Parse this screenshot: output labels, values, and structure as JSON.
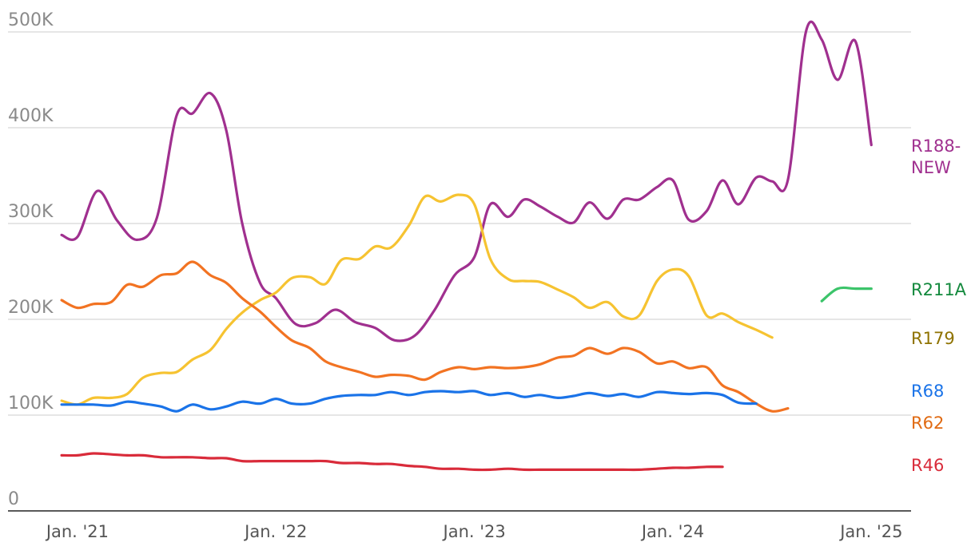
{
  "chart_data": {
    "type": "line",
    "y_ticks": [
      {
        "value": 0,
        "label": "0"
      },
      {
        "value": 100000,
        "label": "100K"
      },
      {
        "value": 200000,
        "label": "200K"
      },
      {
        "value": 300000,
        "label": "300K"
      },
      {
        "value": 400000,
        "label": "400K"
      },
      {
        "value": 500000,
        "label": "500K"
      }
    ],
    "x_ticks": [
      {
        "value": 2021.0,
        "label": "Jan. '21"
      },
      {
        "value": 2022.0,
        "label": "Jan. '22"
      },
      {
        "value": 2023.0,
        "label": "Jan. '23"
      },
      {
        "value": 2024.0,
        "label": "Jan. '24"
      },
      {
        "value": 2025.0,
        "label": "Jan. '25"
      }
    ],
    "xlim": [
      2020.65,
      2025.2
    ],
    "ylim": [
      0,
      500000
    ],
    "grid": true,
    "series": [
      {
        "name": "R188-NEW",
        "label_lines": [
          "R188-",
          "NEW"
        ],
        "color": "#a0308f",
        "label_color": "#a0308f",
        "points": [
          [
            2020.92,
            288000
          ],
          [
            2021.0,
            286000
          ],
          [
            2021.1,
            334000
          ],
          [
            2021.2,
            303000
          ],
          [
            2021.3,
            283000
          ],
          [
            2021.4,
            306000
          ],
          [
            2021.5,
            413000
          ],
          [
            2021.58,
            415000
          ],
          [
            2021.67,
            436000
          ],
          [
            2021.75,
            397000
          ],
          [
            2021.83,
            300000
          ],
          [
            2021.92,
            238000
          ],
          [
            2022.0,
            222000
          ],
          [
            2022.1,
            195000
          ],
          [
            2022.2,
            196000
          ],
          [
            2022.3,
            210000
          ],
          [
            2022.4,
            197000
          ],
          [
            2022.5,
            191000
          ],
          [
            2022.6,
            178000
          ],
          [
            2022.7,
            183000
          ],
          [
            2022.8,
            210000
          ],
          [
            2022.9,
            246000
          ],
          [
            2023.0,
            265000
          ],
          [
            2023.08,
            320000
          ],
          [
            2023.17,
            307000
          ],
          [
            2023.25,
            325000
          ],
          [
            2023.33,
            318000
          ],
          [
            2023.42,
            307000
          ],
          [
            2023.5,
            301000
          ],
          [
            2023.58,
            322000
          ],
          [
            2023.67,
            305000
          ],
          [
            2023.75,
            325000
          ],
          [
            2023.83,
            325000
          ],
          [
            2023.92,
            338000
          ],
          [
            2024.0,
            345000
          ],
          [
            2024.08,
            304000
          ],
          [
            2024.17,
            313000
          ],
          [
            2024.25,
            345000
          ],
          [
            2024.33,
            320000
          ],
          [
            2024.42,
            348000
          ],
          [
            2024.5,
            344000
          ],
          [
            2024.58,
            346000
          ],
          [
            2024.67,
            500000
          ],
          [
            2024.75,
            492000
          ],
          [
            2024.83,
            450000
          ],
          [
            2024.92,
            490000
          ],
          [
            2025.0,
            382000
          ]
        ]
      },
      {
        "name": "R179",
        "label_lines": [
          "R179"
        ],
        "color": "#f6c331",
        "label_color": "#8f7300",
        "points": [
          [
            2020.92,
            115000
          ],
          [
            2021.0,
            111000
          ],
          [
            2021.08,
            118000
          ],
          [
            2021.17,
            118000
          ],
          [
            2021.25,
            122000
          ],
          [
            2021.33,
            139000
          ],
          [
            2021.42,
            144000
          ],
          [
            2021.5,
            145000
          ],
          [
            2021.58,
            158000
          ],
          [
            2021.67,
            168000
          ],
          [
            2021.75,
            190000
          ],
          [
            2021.83,
            207000
          ],
          [
            2021.92,
            220000
          ],
          [
            2022.0,
            228000
          ],
          [
            2022.08,
            243000
          ],
          [
            2022.17,
            244000
          ],
          [
            2022.25,
            237000
          ],
          [
            2022.33,
            262000
          ],
          [
            2022.42,
            263000
          ],
          [
            2022.5,
            276000
          ],
          [
            2022.58,
            275000
          ],
          [
            2022.67,
            298000
          ],
          [
            2022.75,
            328000
          ],
          [
            2022.83,
            323000
          ],
          [
            2022.92,
            330000
          ],
          [
            2023.0,
            320000
          ],
          [
            2023.08,
            263000
          ],
          [
            2023.17,
            242000
          ],
          [
            2023.25,
            240000
          ],
          [
            2023.33,
            239000
          ],
          [
            2023.42,
            231000
          ],
          [
            2023.5,
            223000
          ],
          [
            2023.58,
            212000
          ],
          [
            2023.67,
            218000
          ],
          [
            2023.75,
            203000
          ],
          [
            2023.83,
            204000
          ],
          [
            2023.92,
            240000
          ],
          [
            2024.0,
            252000
          ],
          [
            2024.08,
            245000
          ],
          [
            2024.17,
            204000
          ],
          [
            2024.25,
            206000
          ],
          [
            2024.33,
            197000
          ],
          [
            2024.42,
            189000
          ],
          [
            2024.5,
            181000
          ]
        ]
      },
      {
        "name": "R62",
        "label_lines": [
          "R62"
        ],
        "color": "#f27322",
        "label_color": "#e06a12",
        "points": [
          [
            2020.92,
            220000
          ],
          [
            2021.0,
            212000
          ],
          [
            2021.08,
            216000
          ],
          [
            2021.17,
            218000
          ],
          [
            2021.25,
            236000
          ],
          [
            2021.33,
            234000
          ],
          [
            2021.42,
            246000
          ],
          [
            2021.5,
            248000
          ],
          [
            2021.58,
            260000
          ],
          [
            2021.67,
            246000
          ],
          [
            2021.75,
            238000
          ],
          [
            2021.83,
            222000
          ],
          [
            2021.92,
            208000
          ],
          [
            2022.0,
            192000
          ],
          [
            2022.08,
            178000
          ],
          [
            2022.17,
            170000
          ],
          [
            2022.25,
            156000
          ],
          [
            2022.33,
            150000
          ],
          [
            2022.42,
            145000
          ],
          [
            2022.5,
            140000
          ],
          [
            2022.58,
            142000
          ],
          [
            2022.67,
            141000
          ],
          [
            2022.75,
            137000
          ],
          [
            2022.83,
            145000
          ],
          [
            2022.92,
            150000
          ],
          [
            2023.0,
            148000
          ],
          [
            2023.08,
            150000
          ],
          [
            2023.17,
            149000
          ],
          [
            2023.25,
            150000
          ],
          [
            2023.33,
            153000
          ],
          [
            2023.42,
            160000
          ],
          [
            2023.5,
            162000
          ],
          [
            2023.58,
            170000
          ],
          [
            2023.67,
            164000
          ],
          [
            2023.75,
            170000
          ],
          [
            2023.83,
            166000
          ],
          [
            2023.92,
            154000
          ],
          [
            2024.0,
            156000
          ],
          [
            2024.08,
            149000
          ],
          [
            2024.17,
            150000
          ],
          [
            2024.25,
            131000
          ],
          [
            2024.33,
            124000
          ],
          [
            2024.42,
            112000
          ],
          [
            2024.5,
            104000
          ],
          [
            2024.58,
            107000
          ]
        ]
      },
      {
        "name": "R68",
        "label_lines": [
          "R68"
        ],
        "color": "#1a73e8",
        "label_color": "#1a73e8",
        "points": [
          [
            2020.92,
            111000
          ],
          [
            2021.0,
            111000
          ],
          [
            2021.08,
            111000
          ],
          [
            2021.17,
            110000
          ],
          [
            2021.25,
            114000
          ],
          [
            2021.33,
            112000
          ],
          [
            2021.42,
            109000
          ],
          [
            2021.5,
            104000
          ],
          [
            2021.58,
            111000
          ],
          [
            2021.67,
            106000
          ],
          [
            2021.75,
            109000
          ],
          [
            2021.83,
            114000
          ],
          [
            2021.92,
            112000
          ],
          [
            2022.0,
            117000
          ],
          [
            2022.08,
            112000
          ],
          [
            2022.17,
            112000
          ],
          [
            2022.25,
            117000
          ],
          [
            2022.33,
            120000
          ],
          [
            2022.42,
            121000
          ],
          [
            2022.5,
            121000
          ],
          [
            2022.58,
            124000
          ],
          [
            2022.67,
            121000
          ],
          [
            2022.75,
            124000
          ],
          [
            2022.83,
            125000
          ],
          [
            2022.92,
            124000
          ],
          [
            2023.0,
            125000
          ],
          [
            2023.08,
            121000
          ],
          [
            2023.17,
            123000
          ],
          [
            2023.25,
            119000
          ],
          [
            2023.33,
            121000
          ],
          [
            2023.42,
            118000
          ],
          [
            2023.5,
            120000
          ],
          [
            2023.58,
            123000
          ],
          [
            2023.67,
            120000
          ],
          [
            2023.75,
            122000
          ],
          [
            2023.83,
            119000
          ],
          [
            2023.92,
            124000
          ],
          [
            2024.0,
            123000
          ],
          [
            2024.08,
            122000
          ],
          [
            2024.17,
            123000
          ],
          [
            2024.25,
            121000
          ],
          [
            2024.33,
            113000
          ],
          [
            2024.42,
            112000
          ]
        ]
      },
      {
        "name": "R46",
        "label_lines": [
          "R46"
        ],
        "color": "#d92b3a",
        "label_color": "#d92b3a",
        "points": [
          [
            2020.92,
            58000
          ],
          [
            2021.0,
            58000
          ],
          [
            2021.08,
            60000
          ],
          [
            2021.17,
            59000
          ],
          [
            2021.25,
            58000
          ],
          [
            2021.33,
            58000
          ],
          [
            2021.42,
            56000
          ],
          [
            2021.5,
            56000
          ],
          [
            2021.58,
            56000
          ],
          [
            2021.67,
            55000
          ],
          [
            2021.75,
            55000
          ],
          [
            2021.83,
            52000
          ],
          [
            2021.92,
            52000
          ],
          [
            2022.0,
            52000
          ],
          [
            2022.08,
            52000
          ],
          [
            2022.17,
            52000
          ],
          [
            2022.25,
            52000
          ],
          [
            2022.33,
            50000
          ],
          [
            2022.42,
            50000
          ],
          [
            2022.5,
            49000
          ],
          [
            2022.58,
            49000
          ],
          [
            2022.67,
            47000
          ],
          [
            2022.75,
            46000
          ],
          [
            2022.83,
            44000
          ],
          [
            2022.92,
            44000
          ],
          [
            2023.0,
            43000
          ],
          [
            2023.08,
            43000
          ],
          [
            2023.17,
            44000
          ],
          [
            2023.25,
            43000
          ],
          [
            2023.33,
            43000
          ],
          [
            2023.42,
            43000
          ],
          [
            2023.5,
            43000
          ],
          [
            2023.58,
            43000
          ],
          [
            2023.67,
            43000
          ],
          [
            2023.75,
            43000
          ],
          [
            2023.83,
            43000
          ],
          [
            2023.92,
            44000
          ],
          [
            2024.0,
            45000
          ],
          [
            2024.08,
            45000
          ],
          [
            2024.17,
            46000
          ],
          [
            2024.25,
            46000
          ]
        ]
      },
      {
        "name": "R211A",
        "label_lines": [
          "R211A"
        ],
        "color": "#3cc46a",
        "label_color": "#13893d",
        "points": [
          [
            2024.75,
            219000
          ],
          [
            2024.83,
            232000
          ],
          [
            2024.92,
            232000
          ],
          [
            2025.0,
            232000
          ]
        ]
      }
    ]
  }
}
